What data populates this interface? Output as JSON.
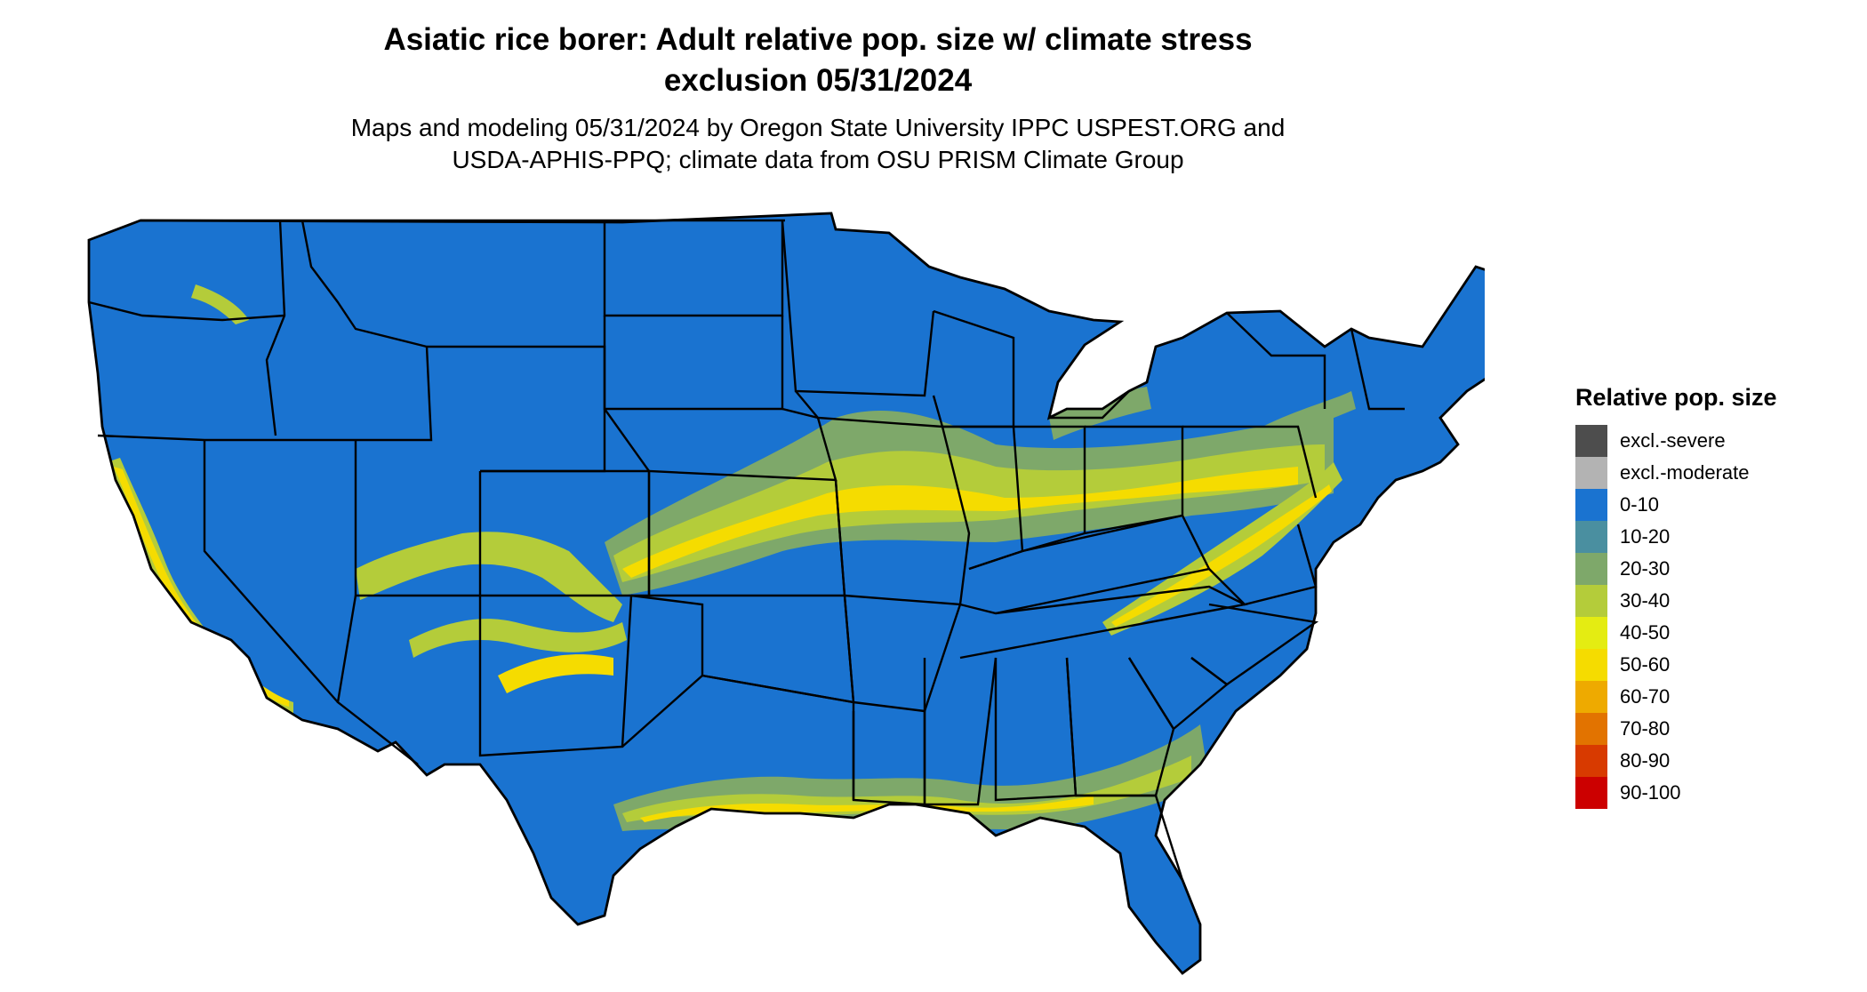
{
  "title": {
    "line1": "Asiatic rice borer: Adult relative pop. size w/ climate stress",
    "line2": "exclusion 05/31/2024"
  },
  "subtitle": {
    "line1": "Maps and modeling 05/31/2024 by Oregon State University IPPC USPEST.ORG and",
    "line2": "USDA-APHIS-PPQ; climate data from OSU PRISM Climate Group"
  },
  "map": {
    "base_color": "#1a73d0",
    "border_color": "#000000"
  },
  "legend": {
    "title": "Relative pop. size",
    "items": [
      {
        "label": "excl.-severe",
        "color": "#4d4d4d"
      },
      {
        "label": "excl.-moderate",
        "color": "#b3b3b3"
      },
      {
        "label": "0-10",
        "color": "#1a73d0"
      },
      {
        "label": "10-20",
        "color": "#4a8fa0"
      },
      {
        "label": "20-30",
        "color": "#7ea86a"
      },
      {
        "label": "30-40",
        "color": "#b4cc3a"
      },
      {
        "label": "40-50",
        "color": "#e4ec12"
      },
      {
        "label": "50-60",
        "color": "#f5dc00"
      },
      {
        "label": "60-70",
        "color": "#eeaa00"
      },
      {
        "label": "70-80",
        "color": "#e27300"
      },
      {
        "label": "80-90",
        "color": "#d83a00"
      },
      {
        "label": "90-100",
        "color": "#cc0000"
      }
    ]
  }
}
